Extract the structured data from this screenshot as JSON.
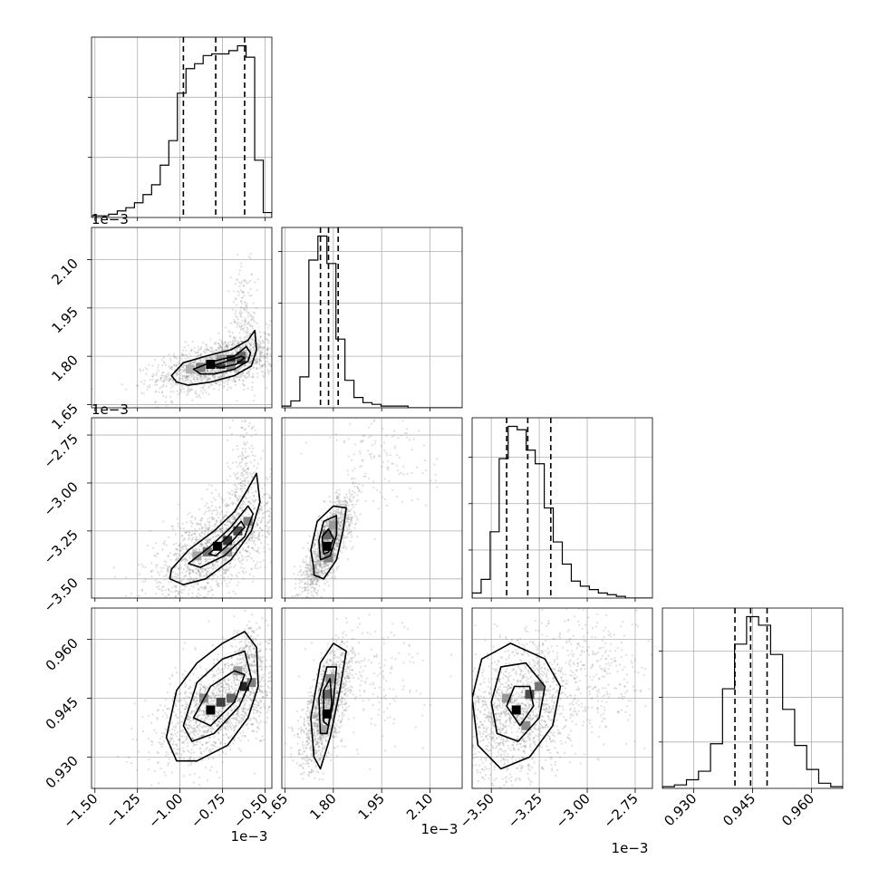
{
  "chart_data": {
    "type": "corner",
    "parameters": 4,
    "colors": {
      "line": "#000000",
      "grid": "#b0b0b0",
      "scatter": "#808080"
    },
    "grid": true,
    "quantile_lines": "dashed",
    "axes": [
      {
        "ticks": [
          -1.5,
          -1.25,
          -1.0,
          -0.75,
          -0.5
        ],
        "tick_labels": [
          "−1.50",
          "−1.25",
          "−1.00",
          "−0.75",
          "−0.50"
        ],
        "range": [
          -1.52,
          -0.46
        ],
        "offset_label": "1e−3"
      },
      {
        "ticks": [
          1.65,
          1.8,
          1.95,
          2.1
        ],
        "tick_labels": [
          "1.65",
          "1.80",
          "1.95",
          "2.10"
        ],
        "range": [
          1.64,
          2.2
        ],
        "offset_label": "1e−3"
      },
      {
        "ticks": [
          -3.5,
          -3.25,
          -3.0,
          -2.75
        ],
        "tick_labels": [
          "−3.50",
          "−3.25",
          "−3.00",
          "−2.75"
        ],
        "range": [
          -3.6,
          -2.66
        ],
        "offset_label": "1e−3"
      },
      {
        "ticks": [
          0.93,
          0.945,
          0.96
        ],
        "tick_labels": [
          "0.930",
          "0.945",
          "0.960"
        ],
        "range": [
          0.922,
          0.968
        ],
        "offset_label": ""
      }
    ],
    "quantiles": [
      [
        -0.98,
        -0.79,
        -0.62
      ],
      [
        1.76,
        1.785,
        1.815
      ],
      [
        -3.42,
        -3.31,
        -3.19
      ],
      [
        0.9405,
        0.9445,
        0.9487
      ]
    ],
    "histograms": [
      [
        0.01,
        0.01,
        0.02,
        0.04,
        0.06,
        0.09,
        0.14,
        0.2,
        0.32,
        0.47,
        0.76,
        0.91,
        0.94,
        0.99,
        1.0,
        1.0,
        1.02,
        1.05,
        0.98,
        0.35,
        0.03
      ],
      [
        0.01,
        0.04,
        0.18,
        0.86,
        1.0,
        0.84,
        0.4,
        0.16,
        0.06,
        0.03,
        0.02,
        0.01,
        0.01,
        0.01,
        0.0,
        0.0,
        0.0,
        0.0,
        0.0,
        0.0
      ],
      [
        0.03,
        0.11,
        0.39,
        0.82,
        1.01,
        0.99,
        0.87,
        0.79,
        0.53,
        0.33,
        0.2,
        0.1,
        0.07,
        0.05,
        0.03,
        0.02,
        0.01,
        0.0,
        0.0,
        0.0
      ],
      [
        0.01,
        0.02,
        0.05,
        0.1,
        0.26,
        0.58,
        0.84,
        1.0,
        0.95,
        0.78,
        0.46,
        0.25,
        0.11,
        0.03,
        0.01
      ]
    ],
    "histogram_y_ticks": [
      [
        0.35,
        0.7
      ],
      [
        0.3,
        0.61,
        0.91
      ],
      [
        0.28,
        0.55,
        0.82
      ],
      [
        0.27,
        0.53,
        0.8
      ]
    ],
    "pair_panels": [
      {
        "x": 0,
        "y": 1,
        "peak": [
          -0.75,
          1.78
        ],
        "contours": [
          [
            [
              -1.05,
              1.74
            ],
            [
              -0.98,
              1.78
            ],
            [
              -0.85,
              1.8
            ],
            [
              -0.7,
              1.82
            ],
            [
              -0.6,
              1.85
            ],
            [
              -0.56,
              1.88
            ],
            [
              -0.55,
              1.82
            ],
            [
              -0.58,
              1.77
            ],
            [
              -0.68,
              1.74
            ],
            [
              -0.82,
              1.72
            ],
            [
              -0.95,
              1.71
            ],
            [
              -1.02,
              1.72
            ]
          ],
          [
            [
              -0.92,
              1.76
            ],
            [
              -0.8,
              1.785
            ],
            [
              -0.68,
              1.8
            ],
            [
              -0.61,
              1.83
            ],
            [
              -0.585,
              1.81
            ],
            [
              -0.6,
              1.785
            ],
            [
              -0.68,
              1.76
            ],
            [
              -0.8,
              1.745
            ],
            [
              -0.88,
              1.745
            ]
          ],
          [
            [
              -0.81,
              1.77
            ],
            [
              -0.72,
              1.785
            ],
            [
              -0.64,
              1.8
            ],
            [
              -0.62,
              1.795
            ],
            [
              -0.67,
              1.775
            ],
            [
              -0.76,
              1.765
            ]
          ]
        ],
        "density_cells": [
          [
            -0.82,
            1.775,
            1.0
          ],
          [
            -0.76,
            1.775,
            0.75
          ],
          [
            -0.7,
            1.79,
            0.8
          ],
          [
            -0.64,
            1.79,
            0.85
          ],
          [
            -0.88,
            1.765,
            0.5
          ],
          [
            -0.7,
            1.77,
            0.45
          ],
          [
            -0.64,
            1.8,
            0.6
          ],
          [
            -0.94,
            1.76,
            0.3
          ],
          [
            -0.76,
            1.79,
            0.4
          ]
        ],
        "scatter": {
          "n": 1700,
          "std": [
            0.14,
            0.033
          ],
          "corr": 0.55,
          "tail_at": [
            -0.62,
            1.9,
            0.04,
            0.09
          ]
        }
      },
      {
        "x": 0,
        "y": 2,
        "peak": [
          -0.78,
          -3.33
        ],
        "contours": [
          [
            [
              -1.05,
              -3.45
            ],
            [
              -0.95,
              -3.35
            ],
            [
              -0.8,
              -3.25
            ],
            [
              -0.68,
              -3.15
            ],
            [
              -0.6,
              -3.03
            ],
            [
              -0.55,
              -2.95
            ],
            [
              -0.53,
              -3.1
            ],
            [
              -0.58,
              -3.25
            ],
            [
              -0.7,
              -3.4
            ],
            [
              -0.85,
              -3.5
            ],
            [
              -0.98,
              -3.53
            ],
            [
              -1.06,
              -3.5
            ]
          ],
          [
            [
              -0.95,
              -3.42
            ],
            [
              -0.82,
              -3.33
            ],
            [
              -0.7,
              -3.23
            ],
            [
              -0.6,
              -3.12
            ],
            [
              -0.57,
              -3.16
            ],
            [
              -0.62,
              -3.28
            ],
            [
              -0.74,
              -3.38
            ],
            [
              -0.88,
              -3.44
            ]
          ],
          [
            [
              -0.83,
              -3.37
            ],
            [
              -0.72,
              -3.28
            ],
            [
              -0.64,
              -3.2
            ],
            [
              -0.62,
              -3.23
            ],
            [
              -0.7,
              -3.31
            ],
            [
              -0.79,
              -3.38
            ]
          ]
        ],
        "density_cells": [
          [
            -0.78,
            -3.33,
            1.0
          ],
          [
            -0.72,
            -3.3,
            0.8
          ],
          [
            -0.66,
            -3.25,
            0.7
          ],
          [
            -0.84,
            -3.36,
            0.55
          ],
          [
            -0.72,
            -3.36,
            0.4
          ],
          [
            -0.9,
            -3.38,
            0.35
          ],
          [
            -0.6,
            -3.2,
            0.5
          ]
        ],
        "scatter": {
          "n": 1700,
          "std": [
            0.15,
            0.12
          ],
          "corr": 0.65,
          "tail_at": [
            -0.62,
            -2.95,
            0.04,
            0.15
          ]
        }
      },
      {
        "x": 1,
        "y": 2,
        "peak": [
          1.78,
          -3.33
        ],
        "contours": [
          [
            [
              1.74,
              -3.45
            ],
            [
              1.73,
              -3.35
            ],
            [
              1.75,
              -3.2
            ],
            [
              1.8,
              -3.12
            ],
            [
              1.84,
              -3.13
            ],
            [
              1.83,
              -3.25
            ],
            [
              1.81,
              -3.4
            ],
            [
              1.77,
              -3.5
            ],
            [
              1.74,
              -3.48
            ]
          ],
          [
            [
              1.76,
              -3.4
            ],
            [
              1.755,
              -3.3
            ],
            [
              1.77,
              -3.2
            ],
            [
              1.81,
              -3.17
            ],
            [
              1.81,
              -3.27
            ],
            [
              1.79,
              -3.38
            ]
          ],
          [
            [
              1.77,
              -3.37
            ],
            [
              1.765,
              -3.28
            ],
            [
              1.785,
              -3.24
            ],
            [
              1.8,
              -3.29
            ],
            [
              1.785,
              -3.36
            ]
          ]
        ],
        "density_cells": [
          [
            1.78,
            -3.33,
            1.0
          ],
          [
            1.78,
            -3.27,
            0.6
          ],
          [
            1.785,
            -3.39,
            0.5
          ],
          [
            1.8,
            -3.22,
            0.4
          ]
        ],
        "scatter": {
          "n": 1500,
          "std": [
            0.03,
            0.1
          ],
          "corr": 0.8,
          "tail_at": [
            1.95,
            -2.85,
            0.08,
            0.18
          ]
        }
      },
      {
        "x": 0,
        "y": 3,
        "peak": [
          -0.75,
          0.943
        ],
        "contours": [
          [
            [
              -1.08,
              0.935
            ],
            [
              -1.02,
              0.947
            ],
            [
              -0.9,
              0.954
            ],
            [
              -0.75,
              0.959
            ],
            [
              -0.62,
              0.962
            ],
            [
              -0.55,
              0.958
            ],
            [
              -0.54,
              0.948
            ],
            [
              -0.6,
              0.94
            ],
            [
              -0.72,
              0.933
            ],
            [
              -0.9,
              0.929
            ],
            [
              -1.02,
              0.929
            ]
          ],
          [
            [
              -0.98,
              0.938
            ],
            [
              -0.9,
              0.949
            ],
            [
              -0.75,
              0.955
            ],
            [
              -0.62,
              0.957
            ],
            [
              -0.58,
              0.95
            ],
            [
              -0.65,
              0.943
            ],
            [
              -0.8,
              0.936
            ],
            [
              -0.93,
              0.934
            ]
          ],
          [
            [
              -0.92,
              0.94
            ],
            [
              -0.82,
              0.948
            ],
            [
              -0.68,
              0.952
            ],
            [
              -0.62,
              0.951
            ],
            [
              -0.68,
              0.944
            ],
            [
              -0.82,
              0.938
            ]
          ]
        ],
        "density_cells": [
          [
            -0.82,
            0.942,
            1.0
          ],
          [
            -0.62,
            0.948,
            0.85
          ],
          [
            -0.76,
            0.944,
            0.75
          ],
          [
            -0.7,
            0.945,
            0.6
          ],
          [
            -0.86,
            0.945,
            0.45
          ],
          [
            -0.66,
            0.952,
            0.4
          ],
          [
            -0.58,
            0.949,
            0.5
          ]
        ],
        "scatter": {
          "n": 1700,
          "std": [
            0.14,
            0.0055
          ],
          "corr": 0.55,
          "tail_at": [
            -0.6,
            0.957,
            0.04,
            0.004
          ]
        }
      },
      {
        "x": 1,
        "y": 3,
        "peak": [
          1.78,
          0.943
        ],
        "contours": [
          [
            [
              1.74,
              0.93
            ],
            [
              1.73,
              0.94
            ],
            [
              1.76,
              0.954
            ],
            [
              1.8,
              0.959
            ],
            [
              1.84,
              0.957
            ],
            [
              1.82,
              0.947
            ],
            [
              1.79,
              0.935
            ],
            [
              1.76,
              0.927
            ]
          ],
          [
            [
              1.76,
              0.936
            ],
            [
              1.755,
              0.945
            ],
            [
              1.78,
              0.953
            ],
            [
              1.81,
              0.953
            ],
            [
              1.8,
              0.944
            ],
            [
              1.78,
              0.936
            ]
          ],
          [
            [
              1.77,
              0.939
            ],
            [
              1.77,
              0.947
            ],
            [
              1.79,
              0.95
            ],
            [
              1.795,
              0.944
            ],
            [
              1.785,
              0.938
            ]
          ]
        ],
        "density_cells": [
          [
            1.78,
            0.941,
            1.0
          ],
          [
            1.78,
            0.946,
            0.6
          ],
          [
            1.79,
            0.95,
            0.45
          ],
          [
            1.77,
            0.937,
            0.35
          ]
        ],
        "scatter": {
          "n": 1500,
          "std": [
            0.03,
            0.0055
          ],
          "corr": 0.65,
          "tail_at": [
            1.92,
            0.95,
            0.08,
            0.008
          ]
        }
      },
      {
        "x": 2,
        "y": 3,
        "peak": [
          -3.35,
          0.942
        ],
        "contours": [
          [
            [
              -3.6,
              0.945
            ],
            [
              -3.55,
              0.955
            ],
            [
              -3.4,
              0.959
            ],
            [
              -3.22,
              0.955
            ],
            [
              -3.14,
              0.948
            ],
            [
              -3.18,
              0.938
            ],
            [
              -3.3,
              0.93
            ],
            [
              -3.45,
              0.927
            ],
            [
              -3.57,
              0.933
            ]
          ],
          [
            [
              -3.5,
              0.944
            ],
            [
              -3.45,
              0.953
            ],
            [
              -3.32,
              0.954
            ],
            [
              -3.22,
              0.948
            ],
            [
              -3.25,
              0.94
            ],
            [
              -3.36,
              0.934
            ],
            [
              -3.47,
              0.936
            ]
          ],
          [
            [
              -3.42,
              0.943
            ],
            [
              -3.38,
              0.948
            ],
            [
              -3.3,
              0.948
            ],
            [
              -3.28,
              0.943
            ],
            [
              -3.35,
              0.938
            ]
          ]
        ],
        "density_cells": [
          [
            -3.37,
            0.942,
            1.0
          ],
          [
            -3.3,
            0.946,
            0.7
          ],
          [
            -3.25,
            0.948,
            0.55
          ],
          [
            -3.32,
            0.938,
            0.45
          ],
          [
            -3.42,
            0.945,
            0.4
          ]
        ],
        "scatter": {
          "n": 1800,
          "std": [
            0.13,
            0.007
          ],
          "corr": 0.35,
          "tail_at": [
            -2.9,
            0.952,
            0.12,
            0.008
          ]
        }
      }
    ]
  }
}
